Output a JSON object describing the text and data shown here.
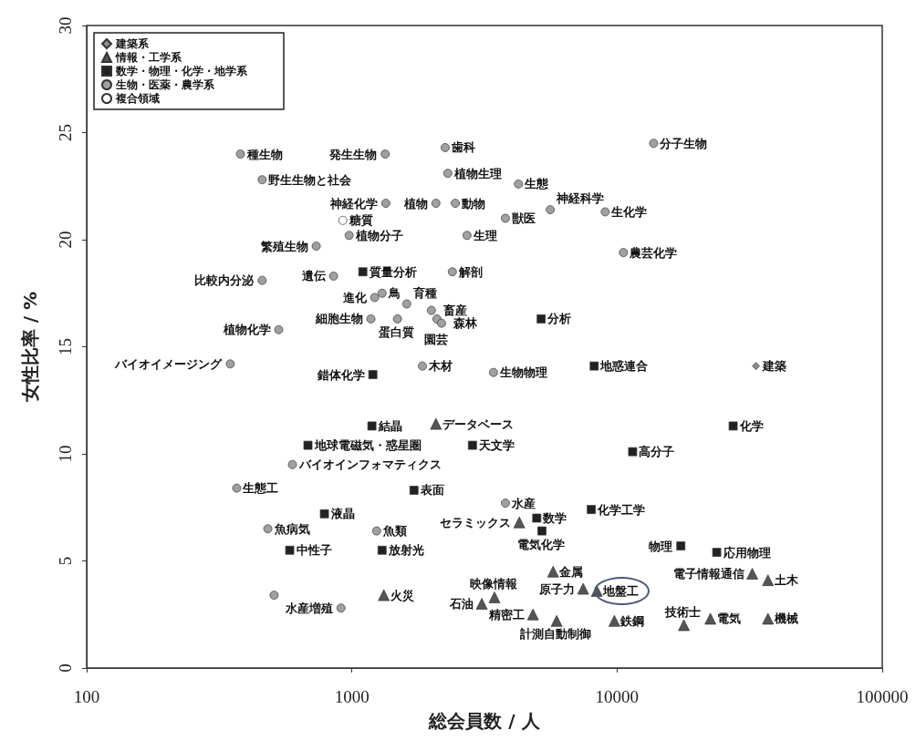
{
  "chart_data": {
    "type": "scatter",
    "xlabel": "総会員数 / 人",
    "ylabel": "女性比率 / %",
    "log": "x",
    "xlim": [
      100,
      100000
    ],
    "xticks": [
      100,
      1000,
      10000,
      100000
    ],
    "ylim": [
      0,
      30
    ],
    "yticks": [
      0,
      5,
      10,
      15,
      20,
      25,
      30
    ],
    "grid": false,
    "legend": "top left",
    "series": [
      {
        "name": "建築系",
        "color": "#8c8c8c",
        "marker": "diamond",
        "x": [
          33400
        ],
        "values": [
          14.1
        ]
      },
      {
        "name": "情報・工学系",
        "color": "#555555",
        "marker": "triangle",
        "x": [
          2075,
          4280,
          5740,
          7450,
          9770,
          3450,
          3090,
          4820,
          5920,
          1320,
          32360,
          37070,
          17870,
          22490,
          37070,
          8390
        ],
        "values": [
          11.4,
          6.8,
          4.5,
          3.7,
          2.2,
          3.3,
          3.0,
          2.5,
          2.2,
          3.4,
          4.4,
          4.1,
          2.0,
          2.3,
          2.3,
          3.6
        ]
      },
      {
        "name": "数学・物理・化学・地学系",
        "color": "#222222",
        "marker": "square",
        "x": [
          1100,
          1200,
          1190,
          683,
          788,
          583,
          1300,
          5175,
          8200,
          2850,
          11450,
          1715,
          4980,
          5210,
          8000,
          17400,
          23760,
          27400
        ],
        "values": [
          18.5,
          13.7,
          11.3,
          10.4,
          7.2,
          5.5,
          5.5,
          16.3,
          14.1,
          10.4,
          10.1,
          8.3,
          7.0,
          6.4,
          7.4,
          5.7,
          5.4,
          11.3
        ]
      },
      {
        "name": "生物・医薬・農学系",
        "color": "#a0a0a0",
        "marker": "circle",
        "x": [
          380,
          459,
          1343,
          1336,
          977,
          734,
          459,
          853,
          1219,
          1300,
          1180,
          530,
          348,
          597,
          368,
          482,
          1240,
          910,
          509,
          2249,
          2300,
          4250,
          2075,
          2456,
          3793,
          5600,
          9020,
          2718,
          2393,
          10570,
          13740,
          1610,
          1486,
          1995,
          2093,
          2178,
          1845,
          3420,
          3793
        ],
        "values": [
          24.0,
          22.8,
          21.7,
          24.0,
          20.2,
          19.7,
          18.1,
          18.3,
          17.3,
          17.5,
          16.3,
          15.8,
          14.2,
          9.5,
          8.4,
          6.5,
          6.4,
          2.8,
          3.4,
          24.3,
          23.1,
          22.6,
          21.7,
          21.7,
          21.0,
          21.4,
          21.3,
          20.2,
          18.5,
          19.4,
          24.5,
          17.0,
          16.3,
          16.7,
          16.3,
          16.1,
          14.1,
          13.8,
          7.7
        ]
      },
      {
        "name": "複合領域",
        "color": "#ffffff",
        "marker": "circle",
        "x": [
          924
        ],
        "values": [
          20.9
        ]
      }
    ],
    "annotations": [
      {
        "text": "建築",
        "x": 33400,
        "y": 14.1
      },
      {
        "text": "データベース",
        "x": 2075,
        "y": 11.4
      },
      {
        "text": "セラミックス",
        "x": 4280,
        "y": 6.8
      },
      {
        "text": "金属",
        "x": 5740,
        "y": 4.5
      },
      {
        "text": "原子力",
        "x": 7450,
        "y": 3.7
      },
      {
        "text": "鉄鋼",
        "x": 9770,
        "y": 2.2
      },
      {
        "text": "映像情報",
        "x": 3450,
        "y": 3.3
      },
      {
        "text": "石油",
        "x": 3090,
        "y": 3.0
      },
      {
        "text": "精密工",
        "x": 4820,
        "y": 2.5
      },
      {
        "text": "計測自動制御",
        "x": 5920,
        "y": 2.2
      },
      {
        "text": "火災",
        "x": 1320,
        "y": 3.4
      },
      {
        "text": "電子情報通信",
        "x": 32360,
        "y": 4.4
      },
      {
        "text": "土木",
        "x": 37070,
        "y": 4.1
      },
      {
        "text": "技術士",
        "x": 17870,
        "y": 2.0
      },
      {
        "text": "電気",
        "x": 22490,
        "y": 2.3
      },
      {
        "text": "機械",
        "x": 37070,
        "y": 2.3
      },
      {
        "text": "質量分析",
        "x": 1100,
        "y": 18.5
      },
      {
        "text": "錯体化学",
        "x": 1200,
        "y": 13.7
      },
      {
        "text": "結晶",
        "x": 1190,
        "y": 11.3
      },
      {
        "text": "地球電磁気・惑星圏",
        "x": 683,
        "y": 10.4
      },
      {
        "text": "液晶",
        "x": 788,
        "y": 7.2
      },
      {
        "text": "中性子",
        "x": 583,
        "y": 5.5
      },
      {
        "text": "放射光",
        "x": 1300,
        "y": 5.5
      },
      {
        "text": "分析",
        "x": 5175,
        "y": 16.3
      },
      {
        "text": "地惑連合",
        "x": 8200,
        "y": 14.1
      },
      {
        "text": "天文学",
        "x": 2850,
        "y": 10.4
      },
      {
        "text": "高分子",
        "x": 11450,
        "y": 10.1
      },
      {
        "text": "表面",
        "x": 1715,
        "y": 8.3
      },
      {
        "text": "数学",
        "x": 4980,
        "y": 7.0
      },
      {
        "text": "電気化学",
        "x": 5210,
        "y": 6.4
      },
      {
        "text": "化学工学",
        "x": 8000,
        "y": 7.4
      },
      {
        "text": "物理",
        "x": 17400,
        "y": 5.7
      },
      {
        "text": "応用物理",
        "x": 23760,
        "y": 5.4
      },
      {
        "text": "化学",
        "x": 27400,
        "y": 11.3
      },
      {
        "text": "種生物",
        "x": 380,
        "y": 24.0
      },
      {
        "text": "野生生物と社会",
        "x": 459,
        "y": 22.8
      },
      {
        "text": "神経化学",
        "x": 1343,
        "y": 21.7
      },
      {
        "text": "発生生物",
        "x": 1336,
        "y": 24.0
      },
      {
        "text": "植物分子",
        "x": 977,
        "y": 20.2
      },
      {
        "text": "繁殖生物",
        "x": 734,
        "y": 19.7
      },
      {
        "text": "比較内分泌",
        "x": 459,
        "y": 18.1
      },
      {
        "text": "遺伝",
        "x": 853,
        "y": 18.3
      },
      {
        "text": "進化",
        "x": 1219,
        "y": 17.3
      },
      {
        "text": "鳥",
        "x": 1300,
        "y": 17.5
      },
      {
        "text": "細胞生物",
        "x": 1180,
        "y": 16.3
      },
      {
        "text": "植物化学",
        "x": 530,
        "y": 15.8
      },
      {
        "text": "バイオイメージング",
        "x": 348,
        "y": 14.2
      },
      {
        "text": "バイオインフォマティクス",
        "x": 597,
        "y": 9.5
      },
      {
        "text": "生態工",
        "x": 368,
        "y": 8.4
      },
      {
        "text": "魚病気",
        "x": 482,
        "y": 6.5
      },
      {
        "text": "魚類",
        "x": 1240,
        "y": 6.4
      },
      {
        "text": "水産増殖",
        "x": 910,
        "y": 2.8
      },
      {
        "text": "歯科",
        "x": 2249,
        "y": 24.3
      },
      {
        "text": "植物生理",
        "x": 2300,
        "y": 23.1
      },
      {
        "text": "生態",
        "x": 4250,
        "y": 22.6
      },
      {
        "text": "植物",
        "x": 2075,
        "y": 21.7
      },
      {
        "text": "動物",
        "x": 2456,
        "y": 21.7
      },
      {
        "text": "獣医",
        "x": 3793,
        "y": 21.0
      },
      {
        "text": "神経科学",
        "x": 5600,
        "y": 21.4
      },
      {
        "text": "生化学",
        "x": 9020,
        "y": 21.3
      },
      {
        "text": "生理",
        "x": 2718,
        "y": 20.2
      },
      {
        "text": "解剖",
        "x": 2393,
        "y": 18.5
      },
      {
        "text": "農芸化学",
        "x": 10570,
        "y": 19.4
      },
      {
        "text": "分子生物",
        "x": 13740,
        "y": 24.5
      },
      {
        "text": "育種",
        "x": 1610,
        "y": 17.0
      },
      {
        "text": "蛋白質",
        "x": 1486,
        "y": 16.3
      },
      {
        "text": "畜産",
        "x": 1995,
        "y": 16.7
      },
      {
        "text": "園芸",
        "x": 2093,
        "y": 16.3
      },
      {
        "text": "森林",
        "x": 2178,
        "y": 16.1
      },
      {
        "text": "木材",
        "x": 1845,
        "y": 14.1
      },
      {
        "text": "生物物理",
        "x": 3420,
        "y": 13.8
      },
      {
        "text": "水産",
        "x": 3793,
        "y": 7.7
      },
      {
        "text": "糖質",
        "x": 924,
        "y": 20.9
      },
      {
        "text": "地盤工",
        "x": 8390,
        "y": 3.6
      }
    ]
  }
}
